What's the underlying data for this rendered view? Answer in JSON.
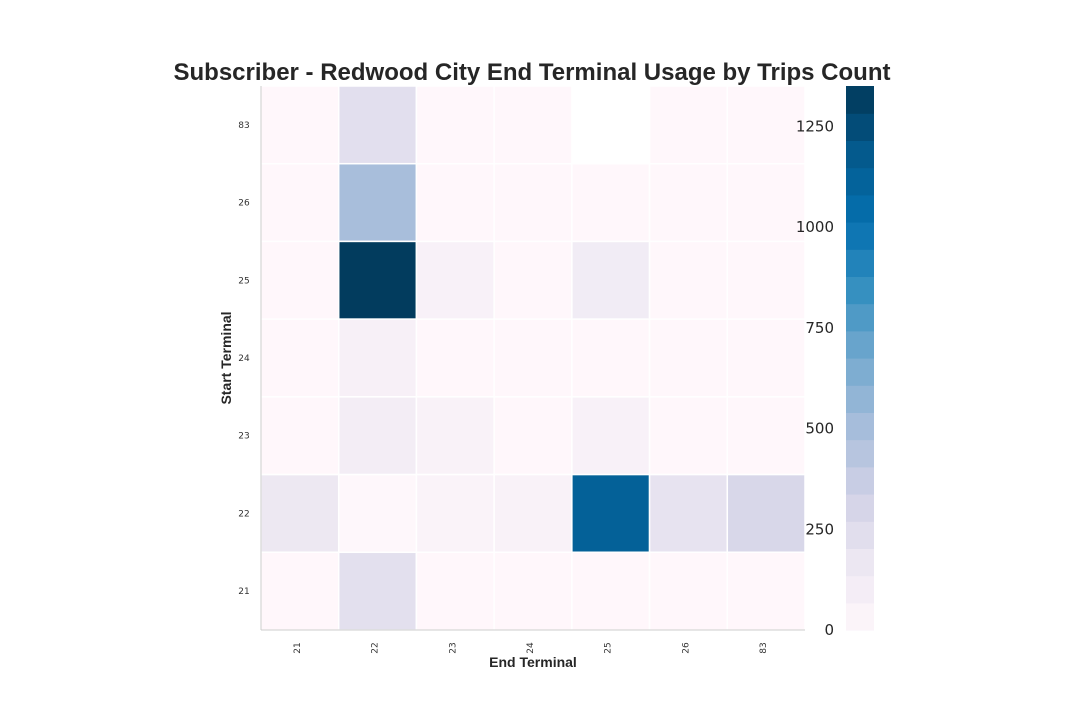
{
  "chart_data": {
    "type": "heatmap",
    "title": "Subscriber - Redwood City End Terminal Usage by Trips Count",
    "xlabel": "End Terminal",
    "ylabel": "Start Terminal",
    "x_categories": [
      "21",
      "22",
      "23",
      "24",
      "25",
      "26",
      "83"
    ],
    "y_categories": [
      "83",
      "26",
      "25",
      "24",
      "23",
      "22",
      "21"
    ],
    "values": [
      [
        2,
        230,
        2,
        2,
        null,
        2,
        2
      ],
      [
        2,
        500,
        2,
        2,
        2,
        2,
        2
      ],
      [
        2,
        1330,
        60,
        2,
        120,
        2,
        2
      ],
      [
        2,
        70,
        2,
        2,
        2,
        2,
        2
      ],
      [
        2,
        110,
        50,
        2,
        60,
        2,
        2
      ],
      [
        160,
        5,
        45,
        50,
        1130,
        200,
        290
      ],
      [
        2,
        220,
        2,
        2,
        2,
        2,
        2
      ]
    ],
    "colorbar": {
      "min": 0,
      "max": 1350,
      "ticks": [
        0,
        250,
        500,
        750,
        1000,
        1250
      ],
      "levels": 20
    },
    "colormap": [
      "#fff7fb",
      "#ece7f2",
      "#d0d1e6",
      "#a6bddb",
      "#74a9cf",
      "#3690c0",
      "#0570b0",
      "#045a8d",
      "#023858"
    ],
    "grid": false
  }
}
